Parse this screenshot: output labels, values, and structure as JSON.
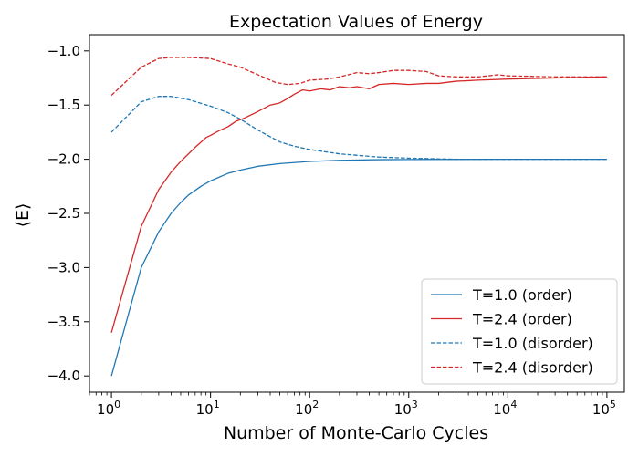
{
  "chart_data": {
    "type": "line",
    "title": "Expectation Values of Energy",
    "xlabel": "Number of Monte-Carlo Cycles",
    "ylabel": "⟨E⟩",
    "xscale": "log",
    "xlim": [
      0.6,
      150000
    ],
    "ylim": [
      -4.15,
      -0.85
    ],
    "x_ticks": [
      {
        "value": 1,
        "exp": "0"
      },
      {
        "value": 10,
        "exp": "1"
      },
      {
        "value": 100,
        "exp": "2"
      },
      {
        "value": 1000,
        "exp": "3"
      },
      {
        "value": 10000,
        "exp": "4"
      },
      {
        "value": 100000,
        "exp": "5"
      }
    ],
    "x_tick_base": "10",
    "y_ticks": [
      -4.0,
      -3.5,
      -3.0,
      -2.5,
      -2.0,
      -1.5,
      -1.0
    ],
    "y_tick_labels": [
      "−4.0",
      "−3.5",
      "−3.0",
      "−2.5",
      "−2.0",
      "−1.5",
      "−1.0"
    ],
    "legend_position": "lower-right",
    "series": [
      {
        "name": "T=1.0 (order)",
        "color": "#1f77b4",
        "dash": "solid",
        "points": [
          [
            1,
            -4.0
          ],
          [
            2,
            -3.0
          ],
          [
            3,
            -2.67
          ],
          [
            4,
            -2.5
          ],
          [
            5,
            -2.4
          ],
          [
            6,
            -2.33
          ],
          [
            8,
            -2.25
          ],
          [
            10,
            -2.2
          ],
          [
            15,
            -2.13
          ],
          [
            20,
            -2.1
          ],
          [
            30,
            -2.065
          ],
          [
            50,
            -2.04
          ],
          [
            100,
            -2.02
          ],
          [
            200,
            -2.01
          ],
          [
            500,
            -2.004
          ],
          [
            1000,
            -2.002
          ],
          [
            10000,
            -2.0
          ],
          [
            100000,
            -2.0
          ]
        ]
      },
      {
        "name": "T=2.4 (order)",
        "color": "#d62728",
        "dash": "solid",
        "points": [
          [
            1,
            -3.6
          ],
          [
            2,
            -2.62
          ],
          [
            3,
            -2.28
          ],
          [
            4,
            -2.12
          ],
          [
            5,
            -2.02
          ],
          [
            7,
            -1.89
          ],
          [
            9,
            -1.8
          ],
          [
            10,
            -1.78
          ],
          [
            12,
            -1.74
          ],
          [
            15,
            -1.7
          ],
          [
            18,
            -1.65
          ],
          [
            22,
            -1.62
          ],
          [
            30,
            -1.56
          ],
          [
            40,
            -1.5
          ],
          [
            50,
            -1.48
          ],
          [
            60,
            -1.44
          ],
          [
            70,
            -1.4
          ],
          [
            85,
            -1.36
          ],
          [
            100,
            -1.37
          ],
          [
            130,
            -1.35
          ],
          [
            160,
            -1.36
          ],
          [
            200,
            -1.33
          ],
          [
            250,
            -1.34
          ],
          [
            300,
            -1.33
          ],
          [
            400,
            -1.35
          ],
          [
            500,
            -1.31
          ],
          [
            700,
            -1.3
          ],
          [
            1000,
            -1.31
          ],
          [
            1500,
            -1.3
          ],
          [
            2000,
            -1.3
          ],
          [
            3000,
            -1.28
          ],
          [
            5000,
            -1.27
          ],
          [
            10000,
            -1.26
          ],
          [
            30000,
            -1.25
          ],
          [
            100000,
            -1.24
          ]
        ]
      },
      {
        "name": "T=1.0 (disorder)",
        "color": "#1f77b4",
        "dash": "dashed",
        "points": [
          [
            1,
            -1.75
          ],
          [
            2,
            -1.47
          ],
          [
            3,
            -1.42
          ],
          [
            4,
            -1.42
          ],
          [
            6,
            -1.45
          ],
          [
            10,
            -1.51
          ],
          [
            15,
            -1.57
          ],
          [
            20,
            -1.63
          ],
          [
            30,
            -1.73
          ],
          [
            50,
            -1.84
          ],
          [
            70,
            -1.88
          ],
          [
            100,
            -1.91
          ],
          [
            200,
            -1.95
          ],
          [
            500,
            -1.98
          ],
          [
            1000,
            -1.99
          ],
          [
            3000,
            -2.0
          ],
          [
            10000,
            -2.0
          ],
          [
            100000,
            -2.0
          ]
        ]
      },
      {
        "name": "T=2.4 (disorder)",
        "color": "#d62728",
        "dash": "dashed",
        "points": [
          [
            1,
            -1.41
          ],
          [
            2,
            -1.15
          ],
          [
            3,
            -1.07
          ],
          [
            4,
            -1.06
          ],
          [
            6,
            -1.06
          ],
          [
            10,
            -1.07
          ],
          [
            15,
            -1.12
          ],
          [
            20,
            -1.15
          ],
          [
            30,
            -1.22
          ],
          [
            45,
            -1.29
          ],
          [
            60,
            -1.31
          ],
          [
            80,
            -1.3
          ],
          [
            100,
            -1.27
          ],
          [
            150,
            -1.26
          ],
          [
            200,
            -1.24
          ],
          [
            300,
            -1.2
          ],
          [
            400,
            -1.21
          ],
          [
            500,
            -1.2
          ],
          [
            700,
            -1.18
          ],
          [
            1000,
            -1.18
          ],
          [
            1500,
            -1.19
          ],
          [
            2000,
            -1.23
          ],
          [
            3000,
            -1.24
          ],
          [
            5000,
            -1.24
          ],
          [
            8000,
            -1.22
          ],
          [
            10000,
            -1.23
          ],
          [
            30000,
            -1.24
          ],
          [
            100000,
            -1.24
          ]
        ]
      }
    ]
  }
}
